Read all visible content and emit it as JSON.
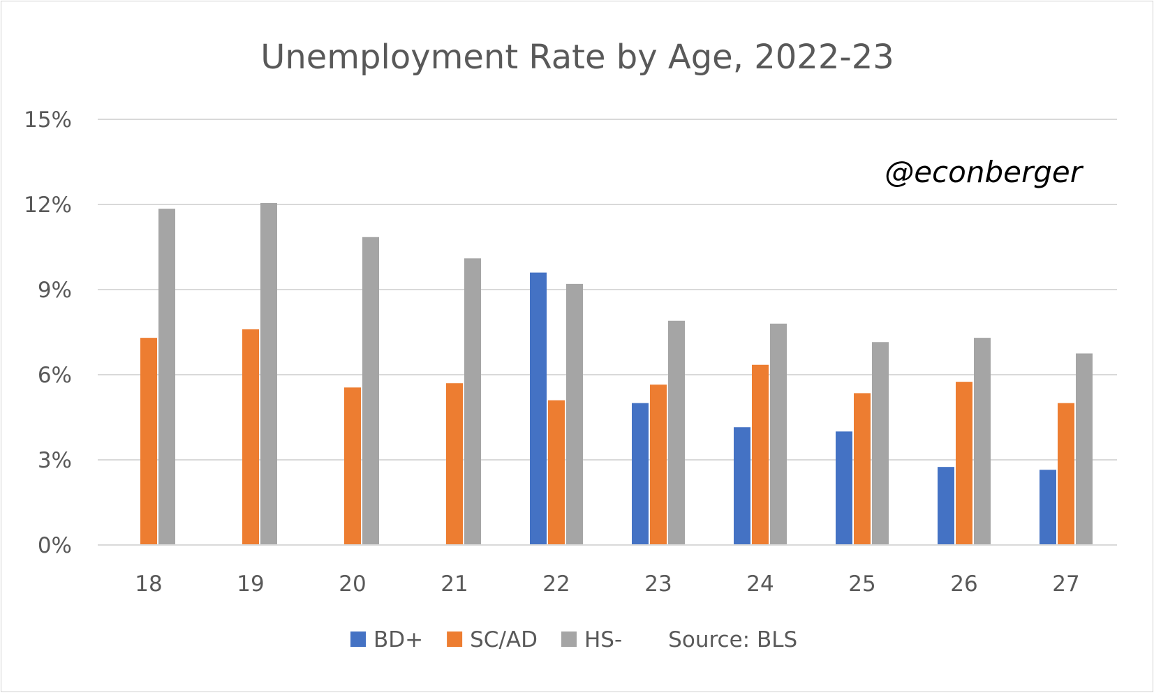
{
  "chart_data": {
    "type": "bar",
    "title": "Unemployment Rate by Age, 2022-23",
    "xlabel": "",
    "ylabel": "",
    "categories": [
      "18",
      "19",
      "20",
      "21",
      "22",
      "23",
      "24",
      "25",
      "26",
      "27"
    ],
    "series": [
      {
        "name": "BD+",
        "color": "#4472C4",
        "values": [
          null,
          null,
          null,
          null,
          9.6,
          5.0,
          4.15,
          4.0,
          2.75,
          2.65
        ]
      },
      {
        "name": "SC/AD",
        "color": "#ED7D31",
        "values": [
          7.3,
          7.6,
          5.55,
          5.7,
          5.1,
          5.65,
          6.35,
          5.35,
          5.75,
          5.0
        ]
      },
      {
        "name": "HS-",
        "color": "#A5A5A5",
        "values": [
          11.85,
          12.05,
          10.85,
          10.1,
          9.2,
          7.9,
          7.8,
          7.15,
          7.3,
          6.75
        ]
      }
    ],
    "ylim": [
      0,
      15
    ],
    "yticks": [
      0,
      3,
      6,
      9,
      12,
      15
    ],
    "ytick_labels": [
      "0%",
      "3%",
      "6%",
      "9%",
      "12%",
      "15%"
    ],
    "grid": true,
    "legend_position": "bottom",
    "source_note": "Source: BLS",
    "watermark": "@econberger"
  }
}
